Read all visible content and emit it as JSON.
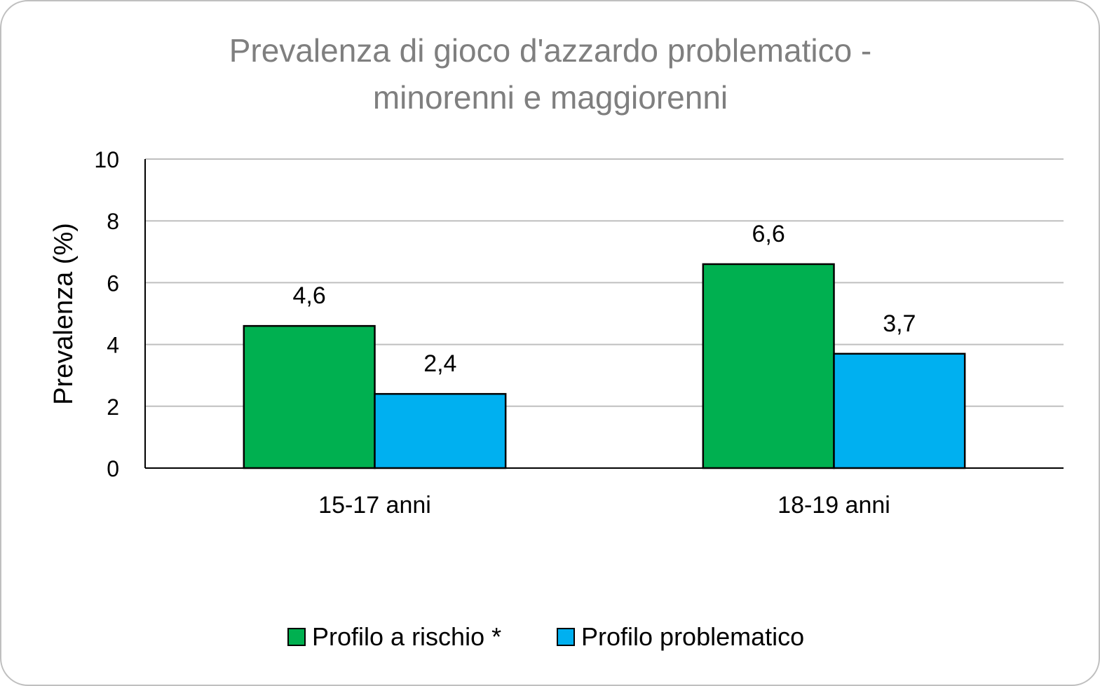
{
  "chart_data": {
    "type": "bar",
    "title_lines": [
      "Prevalenza di gioco d'azzardo problematico -",
      "minorenni e maggiorenni"
    ],
    "xlabel": "",
    "ylabel": "Prevalenza (%)",
    "ylim": [
      0,
      10
    ],
    "yticks": [
      0,
      2,
      4,
      6,
      8,
      10
    ],
    "grid": true,
    "legend_position": "bottom",
    "categories": [
      "15-17 anni",
      "18-19 anni"
    ],
    "series": [
      {
        "name": "Profilo a rischio *",
        "color": "#00b050",
        "values": [
          4.6,
          6.6
        ],
        "labels": [
          "4,6",
          "6,6"
        ]
      },
      {
        "name": "Profilo problematico",
        "color": "#00b0f0",
        "values": [
          2.4,
          3.7
        ],
        "labels": [
          "2,4",
          "3,7"
        ]
      }
    ]
  }
}
